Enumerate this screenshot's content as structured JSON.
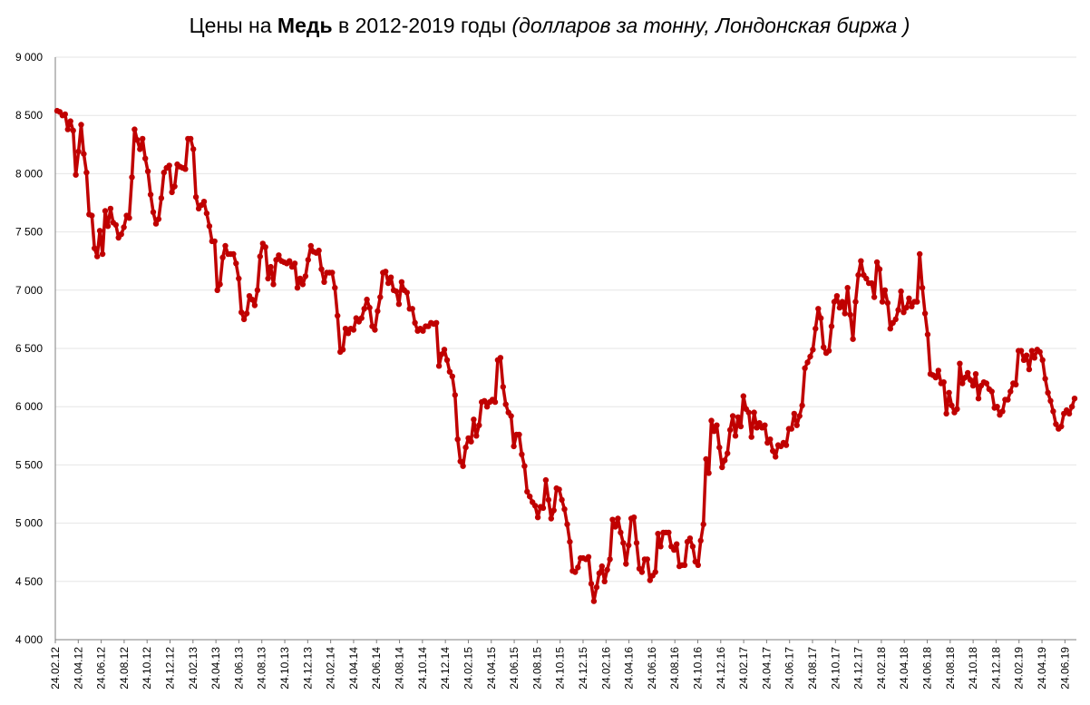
{
  "title": {
    "prefix": "Цены на ",
    "bold": "Медь",
    "middle": " в 2012-2019 годы ",
    "italic": "(долларов за тонну, Лондонская биржа )"
  },
  "colors": {
    "line": "#C00000",
    "grid": "#e6e6e6",
    "axis": "#7f7f7f"
  },
  "chart_data": {
    "type": "line",
    "title": "Цены на Медь в 2012-2019 годы (долларов за тонну, Лондонская биржа )",
    "xlabel": "",
    "ylabel": "",
    "ylim": [
      4000,
      9000
    ],
    "y_ticks": [
      4000,
      4500,
      5000,
      5500,
      6000,
      6500,
      7000,
      7500,
      8000,
      8500,
      9000
    ],
    "y_tick_labels": [
      "4 000",
      "4 500",
      "5 000",
      "5 500",
      "6 000",
      "6 500",
      "7 000",
      "7 500",
      "8 000",
      "8 500",
      "9 000"
    ],
    "x_tick_labels": [
      "24.02.12",
      "24.04.12",
      "24.06.12",
      "24.08.12",
      "24.10.12",
      "24.12.12",
      "24.02.13",
      "24.04.13",
      "24.06.13",
      "24.08.13",
      "24.10.13",
      "24.12.13",
      "24.02.14",
      "24.04.14",
      "24.06.14",
      "24.08.14",
      "24.10.14",
      "24.12.14",
      "24.02.15",
      "24.04.15",
      "24.06.15",
      "24.08.15",
      "24.10.15",
      "24.12.15",
      "24.02.16",
      "24.04.16",
      "24.06.16",
      "24.08.16",
      "24.10.16",
      "24.12.16",
      "24.02.17",
      "24.04.17",
      "24.06.17",
      "24.08.17",
      "24.10.17",
      "24.12.17",
      "24.02.18",
      "24.04.18",
      "24.06.18",
      "24.08.18",
      "24.10.18",
      "24.12.18",
      "24.02.19",
      "24.04.19",
      "24.06.19"
    ],
    "grid": true,
    "legend": "none",
    "series": [
      {
        "values": [
          8540,
          8530,
          8500,
          8510,
          8380,
          8450,
          8370,
          7990,
          8190,
          8420,
          8170,
          8010,
          7650,
          7640,
          7360,
          7290,
          7510,
          7310,
          7680,
          7550,
          7700,
          7580,
          7560,
          7450,
          7480,
          7540,
          7640,
          7620,
          7970,
          8380,
          8290,
          8210,
          8300,
          8130,
          8020,
          7820,
          7670,
          7570,
          7610,
          7790,
          8010,
          8050,
          8070,
          7840,
          7890,
          8080,
          8060,
          8050,
          8040,
          8300,
          8300,
          8210,
          7800,
          7700,
          7730,
          7760,
          7660,
          7550,
          7420,
          7420,
          7000,
          7050,
          7280,
          7380,
          7310,
          7310,
          7310,
          7230,
          7100,
          6810,
          6750,
          6800,
          6950,
          6920,
          6870,
          7000,
          7290,
          7400,
          7370,
          7100,
          7200,
          7050,
          7260,
          7300,
          7250,
          7240,
          7230,
          7250,
          7200,
          7230,
          7020,
          7100,
          7050,
          7120,
          7260,
          7380,
          7330,
          7320,
          7340,
          7180,
          7070,
          7150,
          7150,
          7150,
          7020,
          6780,
          6470,
          6490,
          6670,
          6630,
          6670,
          6660,
          6760,
          6730,
          6760,
          6840,
          6920,
          6850,
          6690,
          6660,
          6820,
          6940,
          7150,
          7160,
          7060,
          7110,
          7000,
          6990,
          6880,
          7070,
          7000,
          6980,
          6840,
          6840,
          6720,
          6650,
          6670,
          6650,
          6690,
          6690,
          6720,
          6710,
          6720,
          6350,
          6450,
          6490,
          6400,
          6300,
          6260,
          6100,
          5720,
          5530,
          5490,
          5650,
          5730,
          5700,
          5890,
          5750,
          5840,
          6040,
          6050,
          6000,
          6040,
          6060,
          6040,
          6400,
          6420,
          6170,
          6020,
          5950,
          5920,
          5660,
          5760,
          5760,
          5590,
          5490,
          5270,
          5230,
          5180,
          5150,
          5050,
          5140,
          5130,
          5370,
          5200,
          5040,
          5110,
          5300,
          5290,
          5200,
          5120,
          4990,
          4840,
          4590,
          4580,
          4620,
          4700,
          4700,
          4690,
          4710,
          4480,
          4330,
          4450,
          4570,
          4630,
          4500,
          4600,
          4690,
          5030,
          4970,
          5040,
          4920,
          4830,
          4650,
          4810,
          5040,
          5050,
          4830,
          4610,
          4580,
          4690,
          4690,
          4510,
          4550,
          4580,
          4910,
          4800,
          4920,
          4920,
          4920,
          4800,
          4770,
          4820,
          4630,
          4640,
          4640,
          4840,
          4870,
          4800,
          4670,
          4640,
          4850,
          4990,
          5550,
          5430,
          5880,
          5790,
          5840,
          5650,
          5480,
          5540,
          5600,
          5800,
          5920,
          5750,
          5910,
          5830,
          6090,
          5980,
          5950,
          5740,
          5950,
          5820,
          5860,
          5820,
          5840,
          5690,
          5720,
          5620,
          5570,
          5670,
          5660,
          5690,
          5670,
          5810,
          5810,
          5940,
          5840,
          5920,
          6010,
          6330,
          6380,
          6430,
          6490,
          6670,
          6840,
          6760,
          6510,
          6460,
          6480,
          6690,
          6900,
          6950,
          6850,
          6900,
          6800,
          7020,
          6790,
          6580,
          6900,
          7130,
          7250,
          7130,
          7100,
          7060,
          7060,
          6940,
          7240,
          7180,
          6900,
          7000,
          6890,
          6670,
          6720,
          6750,
          6830,
          6990,
          6810,
          6850,
          6930,
          6860,
          6900,
          6900,
          7310,
          7020,
          6800,
          6620,
          6280,
          6270,
          6250,
          6310,
          6200,
          6210,
          5940,
          6120,
          6010,
          5950,
          5980,
          6370,
          6200,
          6250,
          6290,
          6230,
          6180,
          6280,
          6070,
          6180,
          6210,
          6200,
          6150,
          6130,
          5990,
          6000,
          5930,
          5960,
          6060,
          6060,
          6130,
          6200,
          6190,
          6480,
          6480,
          6400,
          6440,
          6320,
          6480,
          6420,
          6490,
          6470,
          6400,
          6240,
          6120,
          6050,
          5960,
          5850,
          5810,
          5830,
          5940,
          5970,
          5940,
          6000,
          6070
        ]
      }
    ]
  }
}
